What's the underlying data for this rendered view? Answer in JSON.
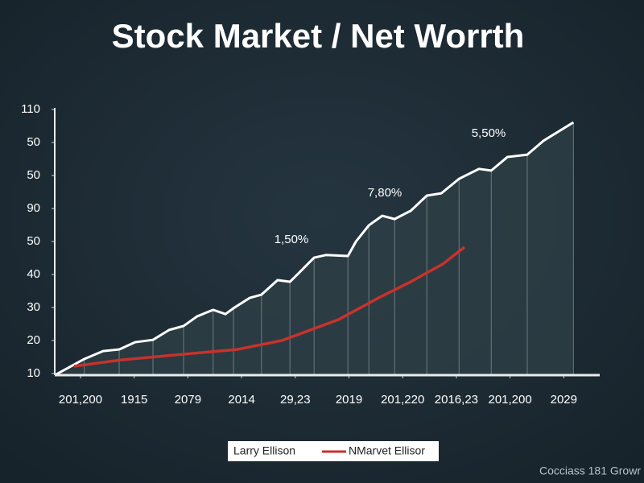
{
  "chart_data": {
    "type": "line",
    "title": "Stock Market / Net Worrth",
    "footer": "Cocciass 181 Growr",
    "annotations": [
      "1,50%",
      "7,80%",
      "5,50%"
    ],
    "legend": "bottom",
    "xlim": [
      -0.48,
      9.67
    ],
    "ylim": [
      10,
      90
    ],
    "xticks": [
      {
        "value": 0,
        "label": "201,200"
      },
      {
        "value": 1,
        "label": "1915"
      },
      {
        "value": 2,
        "label": "2079"
      },
      {
        "value": 3,
        "label": "2014"
      },
      {
        "value": 4,
        "label": "29,23"
      },
      {
        "value": 5,
        "label": "2019"
      },
      {
        "value": 6,
        "label": "201,220"
      },
      {
        "value": 7,
        "label": "2016,23"
      },
      {
        "value": 8,
        "label": "201,200"
      },
      {
        "value": 9,
        "label": "2029"
      }
    ],
    "yticks": [
      10,
      20,
      30,
      40,
      50,
      {
        "value": 60,
        "label": "90"
      },
      {
        "value": 70,
        "label": "50"
      },
      {
        "value": 80,
        "label": "50"
      },
      {
        "value": 90,
        "label": "110"
      }
    ],
    "series": [
      {
        "name": "Larry Ellison",
        "color": "#ffffff",
        "x": [
          -0.48,
          0.07,
          0.42,
          0.72,
          1.02,
          1.35,
          1.65,
          1.92,
          2.17,
          2.47,
          2.7,
          2.85,
          3.15,
          3.37,
          3.67,
          3.9,
          4.05,
          4.35,
          4.57,
          4.98,
          5.13,
          5.37,
          5.62,
          5.85,
          6.15,
          6.45,
          6.72,
          7.05,
          7.42,
          7.65,
          7.95,
          8.32,
          8.62,
          9.18
        ],
        "values": [
          9.5,
          14.4,
          16.8,
          17.3,
          19.5,
          20.2,
          23.2,
          24.4,
          27.3,
          29.3,
          28.0,
          29.8,
          32.9,
          33.9,
          38.3,
          37.8,
          40.2,
          45.1,
          45.9,
          45.6,
          50.0,
          54.9,
          57.8,
          56.8,
          59.3,
          63.9,
          64.6,
          69.0,
          72.0,
          71.5,
          75.6,
          76.3,
          80.5,
          86.1
        ]
      },
      {
        "name": "NMarvet Ellisor",
        "color": "#c8322c",
        "x": [
          -0.12,
          0.75,
          1.95,
          2.92,
          3.75,
          4.8,
          5.55,
          6.15,
          6.75,
          7.15
        ],
        "values": [
          12.2,
          14.1,
          15.9,
          17.3,
          20.0,
          26.3,
          32.9,
          37.8,
          43.2,
          48.3
        ]
      }
    ]
  }
}
